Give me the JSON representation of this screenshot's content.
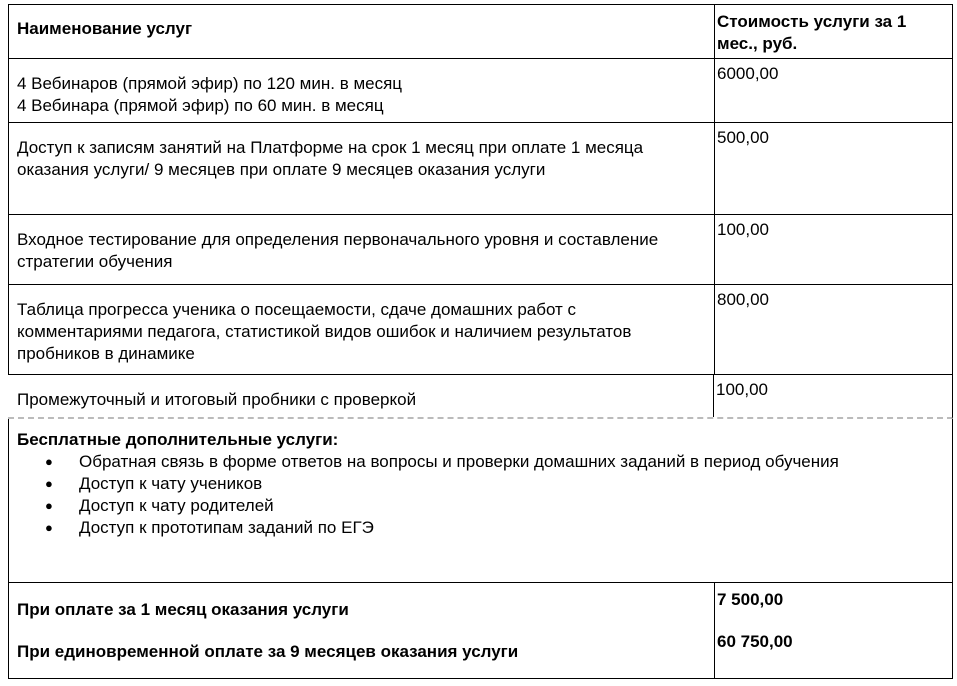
{
  "header": {
    "col1": "Наименование услуг",
    "col2": "Стоимость услуги за 1 мес., руб."
  },
  "rows": [
    {
      "lines": [
        "4 Вебинаров (прямой эфир) по 120 мин. в месяц",
        "4 Вебинара (прямой эфир) по 60 мин. в месяц"
      ],
      "price": "6000,00"
    },
    {
      "lines": [
        "Доступ к записям занятий на Платформе на срок 1 месяц при оплате 1 месяца оказания услуги/   9 месяцев при оплате 9 месяцев оказания услуги"
      ],
      "price": "500,00"
    },
    {
      "lines": [
        "Входное тестирование для определения первоначального уровня и составление стратегии обучения"
      ],
      "price": "100,00"
    },
    {
      "lines": [
        "Таблица прогресса ученика о посещаемости, сдаче домашних работ с комментариями педагога, статистикой видов ошибок и наличием результатов пробников в динамике"
      ],
      "price": "800,00"
    },
    {
      "lines": [
        "Промежуточный и итоговый пробники с проверкой"
      ],
      "price": "100,00"
    }
  ],
  "free": {
    "title": "Бесплатные дополнительные услуги:",
    "items": [
      "Обратная связь в форме ответов на вопросы и проверки домашних заданий в период обучения",
      "Доступ к чату учеников",
      "Доступ к чату родителей",
      "Доступ к прототипам заданий по ЕГЭ"
    ]
  },
  "totals": [
    {
      "label": "При оплате за 1 месяц оказания услуги",
      "price": "7 500,00"
    },
    {
      "label": "При единовременной оплате за 9 месяцев оказания услуги",
      "price": "60 750,00"
    }
  ]
}
